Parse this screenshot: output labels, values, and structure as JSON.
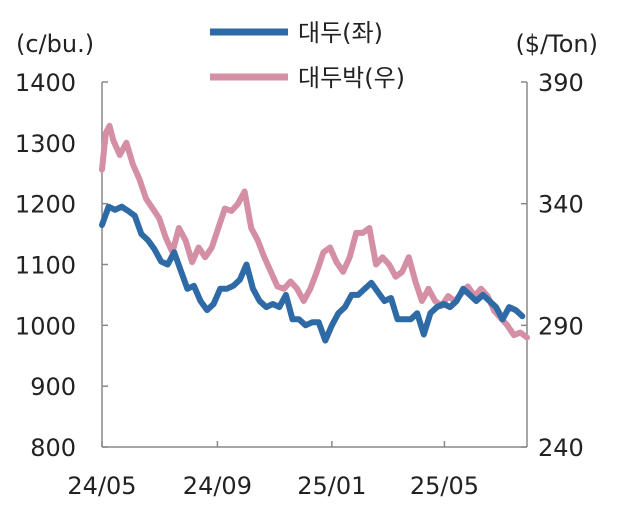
{
  "chart_data": {
    "type": "line",
    "left_unit": "(c/bu.)",
    "right_unit": "($/Ton)",
    "x_ticks": [
      "24/05",
      "24/09",
      "25/01",
      "25/05"
    ],
    "y_left": {
      "min": 800,
      "max": 1400,
      "ticks": [
        "800",
        "900",
        "1000",
        "1100",
        "1200",
        "1300",
        "1400"
      ]
    },
    "y_right": {
      "min": 240,
      "max": 390,
      "ticks": [
        "240",
        "290",
        "340",
        "390"
      ]
    },
    "legend_position": "top-center",
    "grid": false,
    "series": [
      {
        "name": "대두(좌)",
        "axis": "left",
        "color": "#2e6aa6",
        "points": [
          [
            "2024-05-01",
            1165
          ],
          [
            "2024-05-08",
            1195
          ],
          [
            "2024-05-15",
            1190
          ],
          [
            "2024-05-22",
            1195
          ],
          [
            "2024-05-29",
            1188
          ],
          [
            "2024-06-05",
            1180
          ],
          [
            "2024-06-12",
            1150
          ],
          [
            "2024-06-19",
            1140
          ],
          [
            "2024-06-26",
            1125
          ],
          [
            "2024-07-03",
            1105
          ],
          [
            "2024-07-10",
            1100
          ],
          [
            "2024-07-17",
            1120
          ],
          [
            "2024-07-24",
            1090
          ],
          [
            "2024-07-31",
            1060
          ],
          [
            "2024-08-07",
            1065
          ],
          [
            "2024-08-14",
            1040
          ],
          [
            "2024-08-21",
            1025
          ],
          [
            "2024-08-28",
            1035
          ],
          [
            "2024-09-04",
            1060
          ],
          [
            "2024-09-11",
            1060
          ],
          [
            "2024-09-18",
            1065
          ],
          [
            "2024-09-25",
            1075
          ],
          [
            "2024-10-02",
            1100
          ],
          [
            "2024-10-09",
            1060
          ],
          [
            "2024-10-16",
            1040
          ],
          [
            "2024-10-23",
            1030
          ],
          [
            "2024-10-30",
            1035
          ],
          [
            "2024-11-06",
            1030
          ],
          [
            "2024-11-13",
            1050
          ],
          [
            "2024-11-20",
            1010
          ],
          [
            "2024-11-27",
            1010
          ],
          [
            "2024-12-04",
            1000
          ],
          [
            "2024-12-11",
            1005
          ],
          [
            "2024-12-18",
            1005
          ],
          [
            "2024-12-25",
            975
          ],
          [
            "2025-01-01",
            1000
          ],
          [
            "2025-01-08",
            1020
          ],
          [
            "2025-01-15",
            1030
          ],
          [
            "2025-01-22",
            1050
          ],
          [
            "2025-01-29",
            1050
          ],
          [
            "2025-02-05",
            1060
          ],
          [
            "2025-02-12",
            1070
          ],
          [
            "2025-02-19",
            1055
          ],
          [
            "2025-02-26",
            1040
          ],
          [
            "2025-03-05",
            1045
          ],
          [
            "2025-03-12",
            1010
          ],
          [
            "2025-03-19",
            1010
          ],
          [
            "2025-03-26",
            1010
          ],
          [
            "2025-04-02",
            1020
          ],
          [
            "2025-04-09",
            985
          ],
          [
            "2025-04-16",
            1020
          ],
          [
            "2025-04-23",
            1030
          ],
          [
            "2025-04-30",
            1035
          ],
          [
            "2025-05-07",
            1030
          ],
          [
            "2025-05-14",
            1040
          ],
          [
            "2025-05-21",
            1060
          ],
          [
            "2025-05-28",
            1050
          ],
          [
            "2025-06-04",
            1040
          ],
          [
            "2025-06-11",
            1050
          ],
          [
            "2025-06-18",
            1040
          ],
          [
            "2025-06-25",
            1030
          ],
          [
            "2025-07-02",
            1010
          ],
          [
            "2025-07-09",
            1030
          ],
          [
            "2025-07-16",
            1025
          ],
          [
            "2025-07-23",
            1015
          ]
        ]
      },
      {
        "name": "대두박(우)",
        "axis": "right",
        "color": "#d48fa5",
        "points": [
          [
            "2024-05-01",
            354
          ],
          [
            "2024-05-05",
            369
          ],
          [
            "2024-05-09",
            372
          ],
          [
            "2024-05-13",
            366
          ],
          [
            "2024-05-20",
            360
          ],
          [
            "2024-05-27",
            365
          ],
          [
            "2024-06-03",
            356
          ],
          [
            "2024-06-10",
            350
          ],
          [
            "2024-06-17",
            342
          ],
          [
            "2024-06-24",
            338
          ],
          [
            "2024-07-01",
            334
          ],
          [
            "2024-07-08",
            326
          ],
          [
            "2024-07-15",
            320
          ],
          [
            "2024-07-22",
            330
          ],
          [
            "2024-07-29",
            325
          ],
          [
            "2024-08-05",
            316
          ],
          [
            "2024-08-12",
            322
          ],
          [
            "2024-08-19",
            318
          ],
          [
            "2024-08-26",
            322
          ],
          [
            "2024-09-02",
            330
          ],
          [
            "2024-09-09",
            338
          ],
          [
            "2024-09-16",
            337
          ],
          [
            "2024-09-23",
            340
          ],
          [
            "2024-09-30",
            345
          ],
          [
            "2024-10-07",
            330
          ],
          [
            "2024-10-14",
            325
          ],
          [
            "2024-10-21",
            318
          ],
          [
            "2024-10-28",
            312
          ],
          [
            "2024-11-04",
            306
          ],
          [
            "2024-11-11",
            305
          ],
          [
            "2024-11-18",
            308
          ],
          [
            "2024-11-25",
            305
          ],
          [
            "2024-12-02",
            300
          ],
          [
            "2024-12-09",
            305
          ],
          [
            "2024-12-16",
            312
          ],
          [
            "2024-12-23",
            320
          ],
          [
            "2024-12-30",
            322
          ],
          [
            "2025-01-06",
            316
          ],
          [
            "2025-01-13",
            312
          ],
          [
            "2025-01-20",
            318
          ],
          [
            "2025-01-27",
            328
          ],
          [
            "2025-02-03",
            328
          ],
          [
            "2025-02-10",
            330
          ],
          [
            "2025-02-17",
            315
          ],
          [
            "2025-02-24",
            318
          ],
          [
            "2025-03-03",
            315
          ],
          [
            "2025-03-10",
            310
          ],
          [
            "2025-03-17",
            312
          ],
          [
            "2025-03-24",
            318
          ],
          [
            "2025-03-31",
            308
          ],
          [
            "2025-04-07",
            300
          ],
          [
            "2025-04-14",
            305
          ],
          [
            "2025-04-21",
            300
          ],
          [
            "2025-04-28",
            298
          ],
          [
            "2025-05-05",
            302
          ],
          [
            "2025-05-12",
            300
          ],
          [
            "2025-05-19",
            303
          ],
          [
            "2025-05-26",
            306
          ],
          [
            "2025-06-02",
            302
          ],
          [
            "2025-06-09",
            305
          ],
          [
            "2025-06-16",
            302
          ],
          [
            "2025-06-23",
            296
          ],
          [
            "2025-06-30",
            293
          ],
          [
            "2025-07-07",
            290
          ],
          [
            "2025-07-14",
            286
          ],
          [
            "2025-07-21",
            287
          ],
          [
            "2025-07-28",
            285
          ]
        ]
      }
    ]
  }
}
